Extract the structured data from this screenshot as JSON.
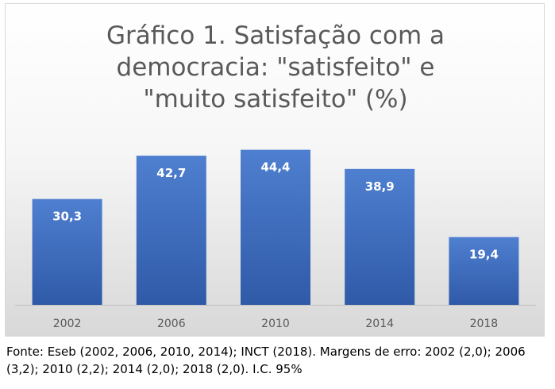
{
  "chart_data": {
    "type": "bar",
    "title": "Gráfico 1. Satisfação com a democracia: \"satisfeito\" e \"muito satisfeito\" (%)",
    "categories": [
      "2002",
      "2006",
      "2010",
      "2014",
      "2018"
    ],
    "values": [
      30.3,
      42.7,
      44.4,
      38.9,
      19.4
    ],
    "value_labels": [
      "30,3",
      "42,7",
      "44,4",
      "38,9",
      "19,4"
    ],
    "xlabel": "",
    "ylabel": "",
    "ylim": [
      0,
      50
    ],
    "grid": false,
    "legend": "none",
    "bar_color": "#4472c4"
  },
  "source_note": "Fonte: Eseb (2002, 2006, 2010, 2014); INCT (2018). Margens de erro: 2002 (2,0); 2006 (3,2); 2010 (2,2); 2014 (2,0); 2018 (2,0). I.C. 95%"
}
